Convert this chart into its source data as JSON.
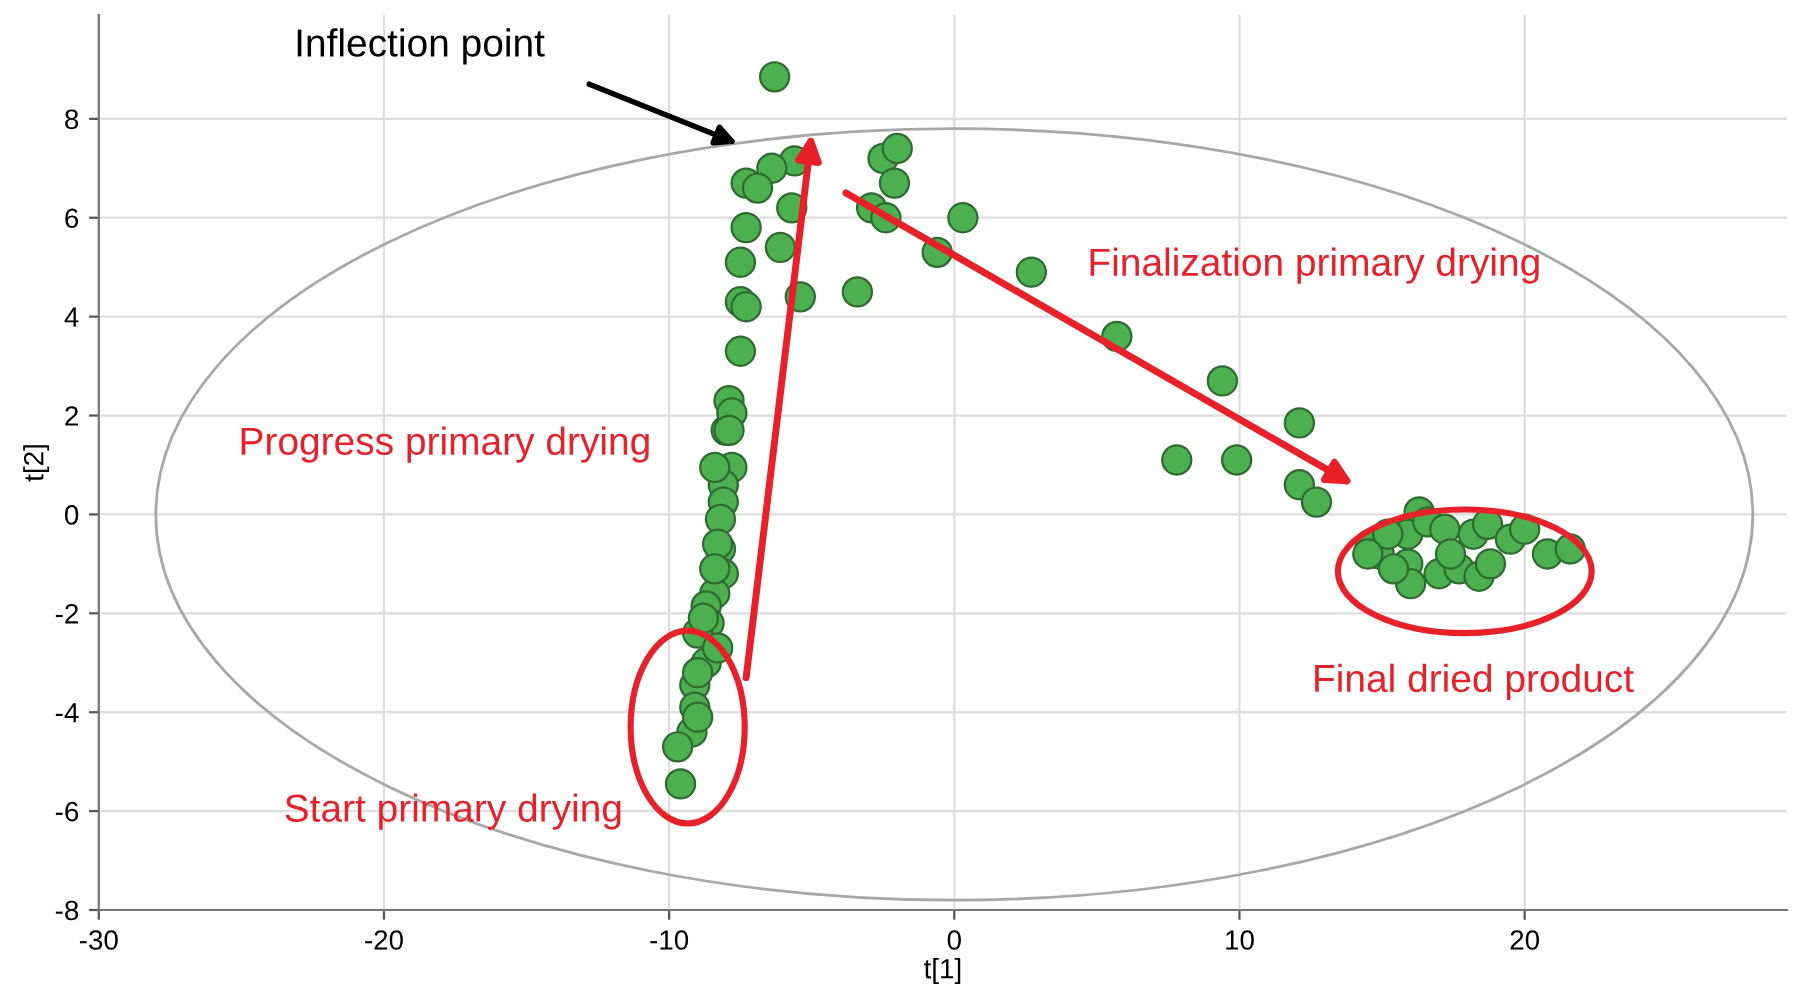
{
  "chart_data": {
    "type": "scatter",
    "xlabel": "t[1]",
    "ylabel": "t[2]",
    "xlim": [
      -30,
      29.2
    ],
    "ylim": [
      -8,
      10.1
    ],
    "xticks": [
      -30,
      -20,
      -10,
      0,
      10,
      20
    ],
    "yticks": [
      -8,
      -6,
      -4,
      -2,
      0,
      2,
      4,
      6,
      8
    ],
    "grid": true,
    "marker": "circle",
    "annotations": [
      "Inflection point",
      "Progress primary drying",
      "Finalization primary drying",
      "Final dried product",
      "Start primary drying"
    ],
    "series": [
      {
        "color": "#4caf50",
        "x": [
          -6.3,
          -2.5,
          -2.0,
          -2.1,
          -5.6,
          -6.4,
          -7.3,
          -6.9,
          -5.7,
          -2.9,
          -2.4,
          0.3,
          -0.6,
          -7.3,
          -6.1,
          -7.5,
          -5.4,
          -3.4,
          -7.5,
          -7.3,
          -7.5,
          -7.9,
          -8.0,
          2.7,
          5.7,
          9.4,
          12.1,
          7.8,
          9.9,
          12.1,
          12.7,
          16.3,
          14.6,
          14.9,
          15.9,
          16.6,
          17.2,
          15.9,
          16.0,
          17.0,
          17.7,
          18.2,
          18.7,
          18.4,
          18.8,
          19.5,
          20.0,
          20.8,
          21.6,
          15.2,
          15.4,
          17.4,
          14.5,
          -7.8,
          -7.9,
          -7.8,
          -8.1,
          -8.1,
          -8.2,
          -8.2,
          -8.1,
          -8.4,
          -8.7,
          -8.6,
          -9.0,
          -8.7,
          -9.1,
          -9.1,
          -9.2,
          -9.7,
          -9.6,
          -8.4,
          -8.3,
          -8.4,
          -8.8,
          -8.3,
          -9.0,
          -9.0
        ],
        "values": [
          8.85,
          7.2,
          7.4,
          6.7,
          7.15,
          7.0,
          6.7,
          6.6,
          6.2,
          6.2,
          6.0,
          6.0,
          5.3,
          5.8,
          5.4,
          5.1,
          4.4,
          4.5,
          4.3,
          4.2,
          3.3,
          2.3,
          1.7,
          4.9,
          3.6,
          2.7,
          1.85,
          1.1,
          1.1,
          0.6,
          0.25,
          0.05,
          -0.6,
          -0.8,
          -0.4,
          -0.15,
          -0.3,
          -1.0,
          -1.4,
          -1.2,
          -1.1,
          -0.4,
          -0.2,
          -1.25,
          -1.0,
          -0.5,
          -0.3,
          -0.8,
          -0.7,
          -0.4,
          -1.1,
          -0.8,
          -0.8,
          2.05,
          1.7,
          0.95,
          0.6,
          0.25,
          -0.1,
          -0.7,
          -1.2,
          -1.6,
          -1.85,
          -2.2,
          -2.4,
          -3.0,
          -3.45,
          -3.9,
          -4.4,
          -4.7,
          -5.45,
          0.95,
          -0.6,
          -1.1,
          -2.1,
          -2.7,
          -3.2,
          -4.1
        ]
      }
    ]
  }
}
